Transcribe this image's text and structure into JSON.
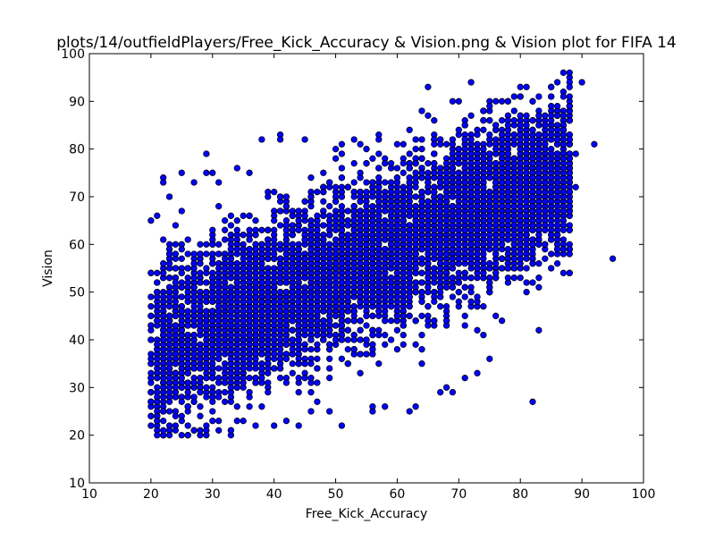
{
  "chart_data": {
    "type": "scatter",
    "title": "plots/14/outfieldPlayers/Free_Kick_Accuracy & Vision.png & Vision plot for FIFA 14",
    "xlabel": "Free_Kick_Accuracy",
    "ylabel": "Vision",
    "xlim": [
      10,
      100
    ],
    "ylim": [
      10,
      100
    ],
    "xticks": [
      "10",
      "20",
      "30",
      "40",
      "50",
      "60",
      "70",
      "80",
      "90",
      "100"
    ],
    "yticks": [
      "10",
      "20",
      "30",
      "40",
      "50",
      "60",
      "70",
      "80",
      "90",
      "100"
    ],
    "grid": false,
    "legend": "none",
    "marker_color": "#0000ff",
    "marker_edge_color": "#000000",
    "trend": {
      "x_range": [
        20,
        92
      ],
      "y_intercept": 27,
      "slope": 0.55,
      "spread": 9,
      "point_count": 6000
    },
    "points": [
      [
        20,
        65
      ],
      [
        21,
        66
      ],
      [
        22,
        74
      ],
      [
        22,
        73
      ],
      [
        23,
        70
      ],
      [
        24,
        64
      ],
      [
        25,
        75
      ],
      [
        27,
        73
      ],
      [
        29,
        79
      ],
      [
        29,
        75
      ],
      [
        30,
        75
      ],
      [
        31,
        73
      ],
      [
        34,
        76
      ],
      [
        36,
        75
      ],
      [
        38,
        82
      ],
      [
        41,
        83
      ],
      [
        41,
        82
      ],
      [
        45,
        82
      ],
      [
        51,
        81
      ],
      [
        53,
        82
      ],
      [
        57,
        83
      ],
      [
        62,
        84
      ],
      [
        66,
        86
      ],
      [
        65,
        93
      ],
      [
        69,
        90
      ],
      [
        74,
        88
      ],
      [
        75,
        86
      ],
      [
        77,
        90
      ],
      [
        78,
        90
      ],
      [
        79,
        91
      ],
      [
        80,
        91
      ],
      [
        81,
        93
      ],
      [
        82,
        90
      ],
      [
        87,
        96
      ],
      [
        90,
        94
      ],
      [
        85,
        87
      ],
      [
        86,
        82
      ],
      [
        88,
        86
      ],
      [
        88,
        82
      ],
      [
        89,
        79
      ],
      [
        92,
        81
      ],
      [
        86,
        73
      ],
      [
        89,
        72
      ],
      [
        95,
        57
      ],
      [
        87,
        67
      ],
      [
        85,
        62
      ],
      [
        86,
        56
      ],
      [
        82,
        56
      ],
      [
        81,
        57
      ],
      [
        83,
        42
      ],
      [
        82,
        27
      ],
      [
        78,
        55
      ],
      [
        76,
        45
      ],
      [
        77,
        44
      ],
      [
        74,
        41
      ],
      [
        73,
        42
      ],
      [
        75,
        36
      ],
      [
        73,
        33
      ],
      [
        71,
        32
      ],
      [
        69,
        29
      ],
      [
        68,
        30
      ],
      [
        67,
        29
      ],
      [
        63,
        26
      ],
      [
        62,
        25
      ],
      [
        58,
        26
      ],
      [
        56,
        25
      ],
      [
        56,
        26
      ],
      [
        51,
        22
      ],
      [
        49,
        25
      ],
      [
        46,
        25
      ],
      [
        44,
        22
      ],
      [
        42,
        23
      ],
      [
        40,
        22
      ],
      [
        37,
        22
      ],
      [
        35,
        23
      ],
      [
        34,
        23
      ],
      [
        33,
        20
      ],
      [
        33,
        21
      ],
      [
        29,
        21
      ],
      [
        29,
        20
      ],
      [
        27,
        21
      ],
      [
        26,
        20
      ],
      [
        25,
        20
      ],
      [
        24,
        21
      ],
      [
        23,
        20
      ],
      [
        22,
        21
      ],
      [
        21,
        23
      ],
      [
        20,
        22
      ],
      [
        20,
        24
      ],
      [
        20,
        27
      ],
      [
        22,
        25
      ],
      [
        24,
        28
      ]
    ]
  }
}
